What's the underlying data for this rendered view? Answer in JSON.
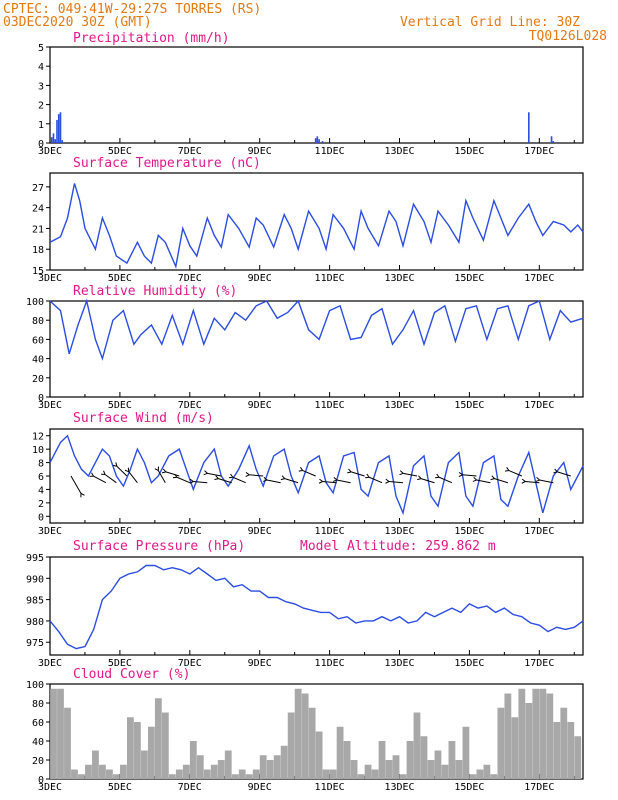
{
  "header": {
    "left_line1": "CPTEC:  049:41W-29:27S  TORRES (RS)",
    "left_line2": "03DEC2020 30Z (GMT)",
    "right_line1": "Vertical Grid Line: 30Z",
    "right_line2": "TQ0126L028"
  },
  "colors": {
    "series": "#2b4de0",
    "cloud": "#a8a8a8",
    "title": "#e0198a",
    "header": "#e07a14"
  },
  "x_ticks": [
    "3DEC",
    "5DEC",
    "7DEC",
    "9DEC",
    "11DEC",
    "13DEC",
    "15DEC",
    "17DEC"
  ],
  "chart_data": [
    {
      "type": "bar",
      "title": "Precipitation (mm/h)",
      "xlabel": "",
      "ylabel": "",
      "ylim": [
        0,
        5
      ],
      "yticks": [
        0,
        1,
        2,
        3,
        4,
        5
      ],
      "x": [
        0.05,
        0.1,
        0.15,
        0.2,
        0.25,
        0.3,
        0.35,
        7.6,
        7.65,
        7.7,
        7.8,
        13.7,
        14.35,
        14.4
      ],
      "values": [
        0.3,
        0.5,
        0.2,
        1.2,
        1.5,
        1.6,
        0.15,
        0.25,
        0.35,
        0.2,
        0.1,
        1.6,
        0.35,
        0.1
      ]
    },
    {
      "type": "line",
      "title": "Surface Temperature (nC)",
      "xlabel": "",
      "ylabel": "",
      "ylim": [
        15,
        29
      ],
      "yticks": [
        15,
        18,
        21,
        24,
        27
      ],
      "x": [
        0,
        0.3,
        0.5,
        0.7,
        0.85,
        1.0,
        1.3,
        1.5,
        1.7,
        1.9,
        2.2,
        2.5,
        2.7,
        2.9,
        3.1,
        3.3,
        3.6,
        3.8,
        4.0,
        4.2,
        4.5,
        4.7,
        4.9,
        5.1,
        5.4,
        5.7,
        5.9,
        6.1,
        6.4,
        6.7,
        6.9,
        7.1,
        7.4,
        7.7,
        7.9,
        8.1,
        8.4,
        8.7,
        8.9,
        9.1,
        9.4,
        9.7,
        9.9,
        10.1,
        10.4,
        10.7,
        10.9,
        11.1,
        11.4,
        11.7,
        11.9,
        12.1,
        12.4,
        12.7,
        12.9,
        13.1,
        13.4,
        13.7,
        13.9,
        14.1,
        14.4,
        14.7,
        14.9,
        15.1,
        15.25
      ],
      "values": [
        19,
        19.8,
        22.5,
        27.5,
        25,
        21,
        18,
        22.5,
        20,
        17,
        16,
        19,
        17,
        16,
        20,
        19,
        15.5,
        21,
        18.5,
        17,
        22.5,
        20,
        18.3,
        23,
        21,
        18.3,
        22.5,
        21.5,
        18.3,
        23,
        21,
        18,
        23.5,
        21,
        18,
        23,
        21,
        18,
        23.5,
        21,
        18.5,
        23.5,
        22,
        18.5,
        24.5,
        22,
        19,
        23.5,
        21.5,
        19,
        25,
        22.5,
        19.3,
        25,
        22.5,
        20,
        22.5,
        24.5,
        22,
        20,
        22,
        21.5,
        20.5,
        21.5,
        20.5
      ]
    },
    {
      "type": "line",
      "title": "Relative Humidity (%)",
      "xlabel": "",
      "ylabel": "",
      "ylim": [
        0,
        100
      ],
      "yticks": [
        0,
        20,
        40,
        60,
        80,
        100
      ],
      "x": [
        0,
        0.3,
        0.55,
        0.8,
        1.05,
        1.3,
        1.5,
        1.8,
        2.1,
        2.4,
        2.6,
        2.9,
        3.2,
        3.5,
        3.8,
        4.1,
        4.4,
        4.7,
        5.0,
        5.3,
        5.6,
        5.9,
        6.2,
        6.5,
        6.8,
        7.1,
        7.4,
        7.7,
        8.0,
        8.3,
        8.6,
        8.9,
        9.2,
        9.5,
        9.8,
        10.1,
        10.4,
        10.7,
        11.0,
        11.3,
        11.6,
        11.9,
        12.2,
        12.5,
        12.8,
        13.1,
        13.4,
        13.7,
        14.0,
        14.3,
        14.6,
        14.9,
        15.25
      ],
      "values": [
        100,
        90,
        45,
        75,
        100,
        60,
        40,
        80,
        90,
        55,
        65,
        75,
        55,
        85,
        55,
        90,
        55,
        82,
        70,
        88,
        80,
        95,
        100,
        82,
        88,
        100,
        70,
        60,
        90,
        95,
        60,
        62,
        85,
        92,
        55,
        70,
        90,
        55,
        88,
        95,
        58,
        92,
        95,
        60,
        92,
        95,
        60,
        95,
        100,
        60,
        90,
        78,
        82
      ]
    },
    {
      "type": "line",
      "title": "Surface Wind (m/s)",
      "xlabel": "",
      "ylabel": "",
      "ylim": [
        -1,
        13
      ],
      "yticks": [
        0,
        2,
        4,
        6,
        8,
        10,
        12
      ],
      "x": [
        0,
        0.3,
        0.5,
        0.7,
        0.9,
        1.1,
        1.3,
        1.5,
        1.7,
        1.9,
        2.1,
        2.3,
        2.5,
        2.7,
        2.9,
        3.1,
        3.4,
        3.7,
        3.9,
        4.1,
        4.4,
        4.7,
        4.9,
        5.1,
        5.4,
        5.7,
        5.9,
        6.1,
        6.4,
        6.7,
        6.9,
        7.1,
        7.4,
        7.7,
        7.9,
        8.1,
        8.4,
        8.7,
        8.9,
        9.1,
        9.4,
        9.7,
        9.9,
        10.1,
        10.4,
        10.7,
        10.9,
        11.1,
        11.4,
        11.7,
        11.9,
        12.1,
        12.4,
        12.7,
        12.9,
        13.1,
        13.4,
        13.7,
        13.9,
        14.1,
        14.4,
        14.7,
        14.9,
        15.1,
        15.25
      ],
      "values": [
        8,
        11,
        12,
        9,
        7,
        6,
        8,
        10,
        9,
        6,
        4.5,
        7,
        10,
        8,
        5,
        6,
        9,
        10,
        7,
        4,
        8,
        10,
        6,
        4.5,
        7,
        10.5,
        7,
        4.5,
        9,
        10,
        6,
        3.5,
        8,
        9,
        5,
        3.5,
        9,
        9.5,
        4,
        3,
        8,
        9,
        3,
        0.5,
        7.5,
        9,
        3,
        1.5,
        8,
        9.5,
        3,
        1.5,
        8,
        9,
        2.5,
        1.5,
        6,
        9.5,
        5,
        0.5,
        6,
        8,
        4,
        6,
        7.5
      ],
      "arrows_x": [
        0.6,
        1.6,
        1.9,
        2.2,
        2.5,
        3.3,
        3.7,
        4.0,
        4.5,
        4.9,
        5.2,
        5.6,
        6.1,
        6.6,
        7.1,
        7.6,
        8.2,
        8.6,
        9.0,
        9.5,
        10.1,
        10.5,
        11.0,
        11.5,
        12.2,
        12.6,
        13.1,
        13.5,
        14.0,
        14.4,
        14.9
      ]
    },
    {
      "type": "line",
      "title": "Surface Pressure (hPa)",
      "annotation": "Model Altitude: 259.862 m",
      "xlabel": "",
      "ylabel": "",
      "ylim": [
        972,
        995
      ],
      "yticks": [
        975,
        980,
        985,
        990,
        995
      ],
      "x": [
        0,
        0.25,
        0.5,
        0.75,
        1.0,
        1.25,
        1.5,
        1.75,
        2.0,
        2.25,
        2.5,
        2.75,
        3.0,
        3.25,
        3.5,
        3.75,
        4.0,
        4.25,
        4.5,
        4.75,
        5.0,
        5.25,
        5.5,
        5.75,
        6.0,
        6.25,
        6.5,
        6.75,
        7.0,
        7.25,
        7.5,
        7.75,
        8.0,
        8.25,
        8.5,
        8.75,
        9.0,
        9.25,
        9.5,
        9.75,
        10.0,
        10.25,
        10.5,
        10.75,
        11.0,
        11.25,
        11.5,
        11.75,
        12.0,
        12.25,
        12.5,
        12.75,
        13.0,
        13.25,
        13.5,
        13.75,
        14.0,
        14.25,
        14.5,
        14.75,
        15.0,
        15.25
      ],
      "values": [
        980,
        977.5,
        974.5,
        973.5,
        974,
        978,
        985,
        987,
        990,
        991,
        991.5,
        993,
        993,
        992,
        992.5,
        992,
        991,
        992.5,
        991,
        989.5,
        990,
        988,
        988.5,
        987,
        987,
        985.5,
        985.5,
        984.5,
        984,
        983,
        982.5,
        982,
        982,
        980.5,
        981,
        979.5,
        980,
        980,
        981,
        980,
        981,
        979.5,
        980,
        982,
        981,
        982,
        983,
        982,
        984,
        983,
        983.5,
        982,
        983,
        981.5,
        981,
        979.5,
        979,
        977.5,
        978.5,
        978,
        978.5,
        980
      ]
    },
    {
      "type": "bar",
      "title": "Cloud Cover (%)",
      "xlabel": "",
      "ylabel": "",
      "ylim": [
        0,
        100
      ],
      "yticks": [
        0,
        20,
        40,
        60,
        80,
        100
      ],
      "x": [
        0.1,
        0.3,
        0.5,
        0.7,
        0.9,
        1.1,
        1.3,
        1.5,
        1.7,
        1.9,
        2.1,
        2.3,
        2.5,
        2.7,
        2.9,
        3.1,
        3.3,
        3.5,
        3.7,
        3.9,
        4.1,
        4.3,
        4.5,
        4.7,
        4.9,
        5.1,
        5.3,
        5.5,
        5.7,
        5.9,
        6.1,
        6.3,
        6.5,
        6.7,
        6.9,
        7.1,
        7.3,
        7.5,
        7.7,
        7.9,
        8.1,
        8.3,
        8.5,
        8.7,
        8.9,
        9.1,
        9.3,
        9.5,
        9.7,
        9.9,
        10.1,
        10.3,
        10.5,
        10.7,
        10.9,
        11.1,
        11.3,
        11.5,
        11.7,
        11.9,
        12.1,
        12.3,
        12.5,
        12.7,
        12.9,
        13.1,
        13.3,
        13.5,
        13.7,
        13.9,
        14.1,
        14.3,
        14.5,
        14.7,
        14.9,
        15.1
      ],
      "values": [
        95,
        95,
        75,
        10,
        5,
        15,
        30,
        15,
        10,
        5,
        15,
        65,
        60,
        30,
        55,
        85,
        70,
        5,
        10,
        15,
        40,
        25,
        10,
        15,
        20,
        30,
        5,
        10,
        5,
        10,
        25,
        20,
        25,
        35,
        70,
        95,
        90,
        75,
        50,
        10,
        10,
        55,
        40,
        20,
        5,
        15,
        10,
        40,
        20,
        25,
        5,
        40,
        70,
        45,
        20,
        30,
        15,
        40,
        20,
        55,
        5,
        10,
        15,
        5,
        75,
        90,
        65,
        95,
        80,
        95,
        95,
        90,
        60,
        75,
        60,
        45
      ]
    }
  ]
}
